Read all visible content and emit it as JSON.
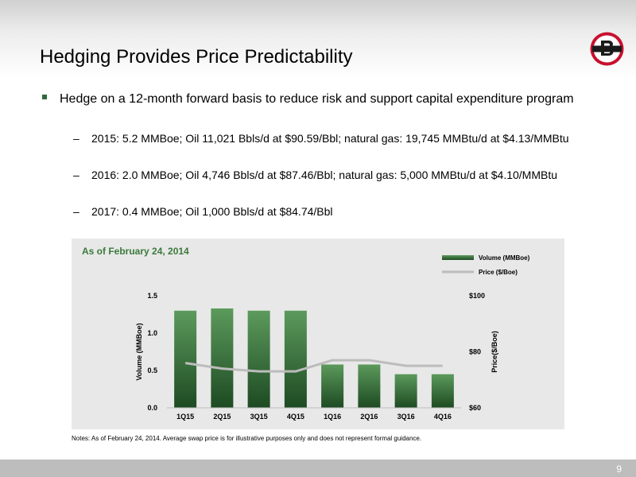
{
  "slide": {
    "title": "Hedging Provides Price Predictability",
    "page_number": "9",
    "bullet": "Hedge on a 12-month forward basis to reduce risk and support capital expenditure program",
    "sub_dash": "–",
    "sub_bullets": [
      "2015: 5.2 MMBoe; Oil 11,021 Bbls/d at $90.59/Bbl; natural gas: 19,745 MMBtu/d at $4.13/MMBtu",
      "2016: 2.0 MMBoe; Oil 4,746 Bbls/d at $87.46/Bbl; natural gas: 5,000 MMBtu/d at $4.10/MMBtu",
      "2017: 0.4 MMBoe; Oil 1,000 Bbls/d at $84.74/Bbl"
    ],
    "note": "Notes: As of February 24, 2014. Average swap price is for illustrative purposes only and does not represent formal guidance.",
    "colors": {
      "accent": "#2f6b3a",
      "logo_red": "#c8102e",
      "bar_top": "#5c9a5c",
      "bar_bottom": "#1d4a22",
      "price_line": "#bcbcbc"
    },
    "logo_icon": "company-logo-b"
  },
  "chart_data": {
    "type": "bar",
    "title": "As of February 24, 2014",
    "categories": [
      "1Q15",
      "2Q15",
      "3Q15",
      "4Q15",
      "1Q16",
      "2Q16",
      "3Q16",
      "4Q16"
    ],
    "series": [
      {
        "name": "Volume (MMBoe)",
        "type": "bar",
        "axis": "left",
        "values": [
          1.3,
          1.33,
          1.3,
          1.3,
          0.58,
          0.58,
          0.45,
          0.45
        ]
      },
      {
        "name": "Price ($/Boe)",
        "type": "line",
        "axis": "right",
        "values": [
          76,
          74,
          73,
          73,
          77,
          77,
          75,
          75
        ]
      }
    ],
    "ylabel": "Volume (MMBoe)",
    "y2label": "Price($/Boe)",
    "ylim": [
      0,
      1.5
    ],
    "y2lim": [
      60,
      100
    ],
    "yticks": [
      "0.0",
      "0.5",
      "1.0",
      "1.5"
    ],
    "y2ticks": [
      "$60",
      "$80",
      "$100"
    ],
    "legend_position": "top-right",
    "grid": false
  }
}
